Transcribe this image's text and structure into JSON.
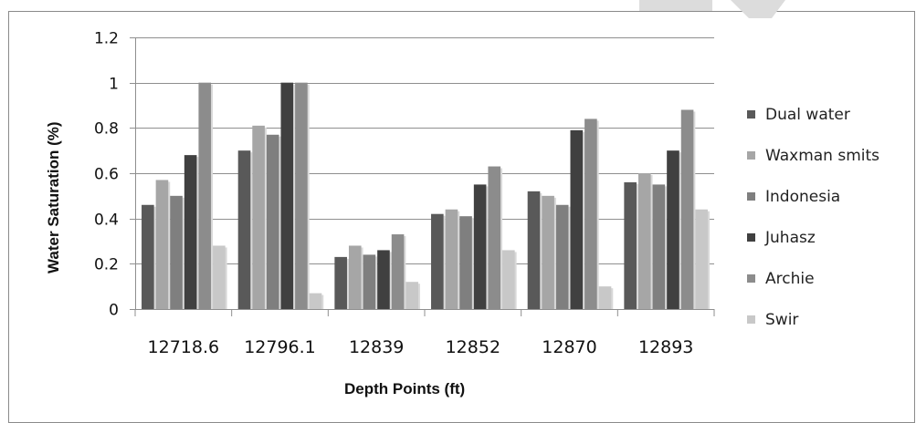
{
  "chart_data": {
    "type": "bar",
    "title": "",
    "xlabel": "Depth  Points (ft)",
    "ylabel": "Water Saturation  (%)",
    "ylim": [
      0,
      1.2
    ],
    "yticks": [
      "0",
      "0.2",
      "0.4",
      "0.6",
      "0.8",
      "1",
      "1.2"
    ],
    "categories": [
      "12718.6",
      "12796.1",
      "12839",
      "12852",
      "12870",
      "12893"
    ],
    "series": [
      {
        "name": "Dual water",
        "color": "#595959",
        "values": [
          0.46,
          0.7,
          0.23,
          0.42,
          0.52,
          0.56
        ]
      },
      {
        "name": "Waxman smits",
        "color": "#a6a6a6",
        "values": [
          0.57,
          0.81,
          0.28,
          0.44,
          0.5,
          0.6
        ]
      },
      {
        "name": "Indonesia",
        "color": "#7f7f7f",
        "values": [
          0.5,
          0.77,
          0.24,
          0.41,
          0.46,
          0.55
        ]
      },
      {
        "name": "Juhasz",
        "color": "#404040",
        "values": [
          0.68,
          1.0,
          0.26,
          0.55,
          0.79,
          0.7
        ]
      },
      {
        "name": "Archie",
        "color": "#8c8c8c",
        "values": [
          1.0,
          1.0,
          0.33,
          0.63,
          0.84,
          0.88
        ]
      },
      {
        "name": "Swir",
        "color": "#c8c8c8",
        "values": [
          0.28,
          0.07,
          0.12,
          0.26,
          0.1,
          0.44
        ]
      }
    ],
    "grid": true,
    "legend": "right"
  }
}
